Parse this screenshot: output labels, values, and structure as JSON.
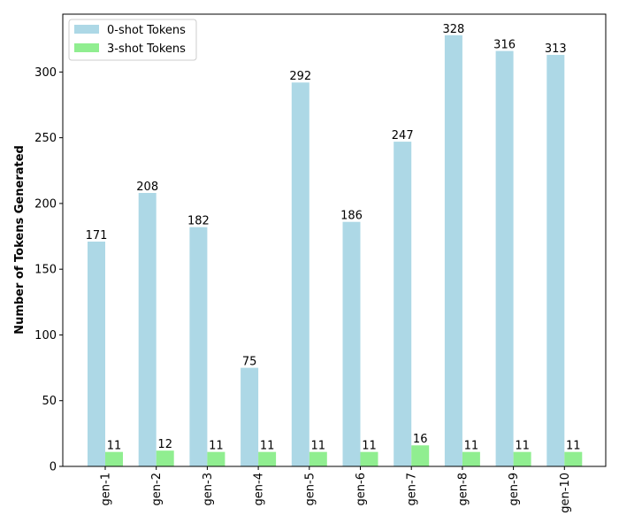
{
  "chart_data": {
    "type": "bar",
    "categories": [
      "gen-1",
      "gen-2",
      "gen-3",
      "gen-4",
      "gen-5",
      "gen-6",
      "gen-7",
      "gen-8",
      "gen-9",
      "gen-10"
    ],
    "series": [
      {
        "name": "0-shot Tokens",
        "values": [
          171,
          208,
          182,
          75,
          292,
          186,
          247,
          328,
          316,
          313
        ],
        "color": "#add8e6"
      },
      {
        "name": "3-shot Tokens",
        "values": [
          11,
          12,
          11,
          11,
          11,
          11,
          16,
          11,
          11,
          11
        ],
        "color": "#90ee90"
      }
    ],
    "title": "",
    "xlabel": "",
    "ylabel": "Number of Tokens Generated",
    "ylim": [
      0,
      344
    ],
    "yticks": [
      0,
      50,
      100,
      150,
      200,
      250,
      300
    ],
    "legend": "top-left",
    "grid": false
  }
}
